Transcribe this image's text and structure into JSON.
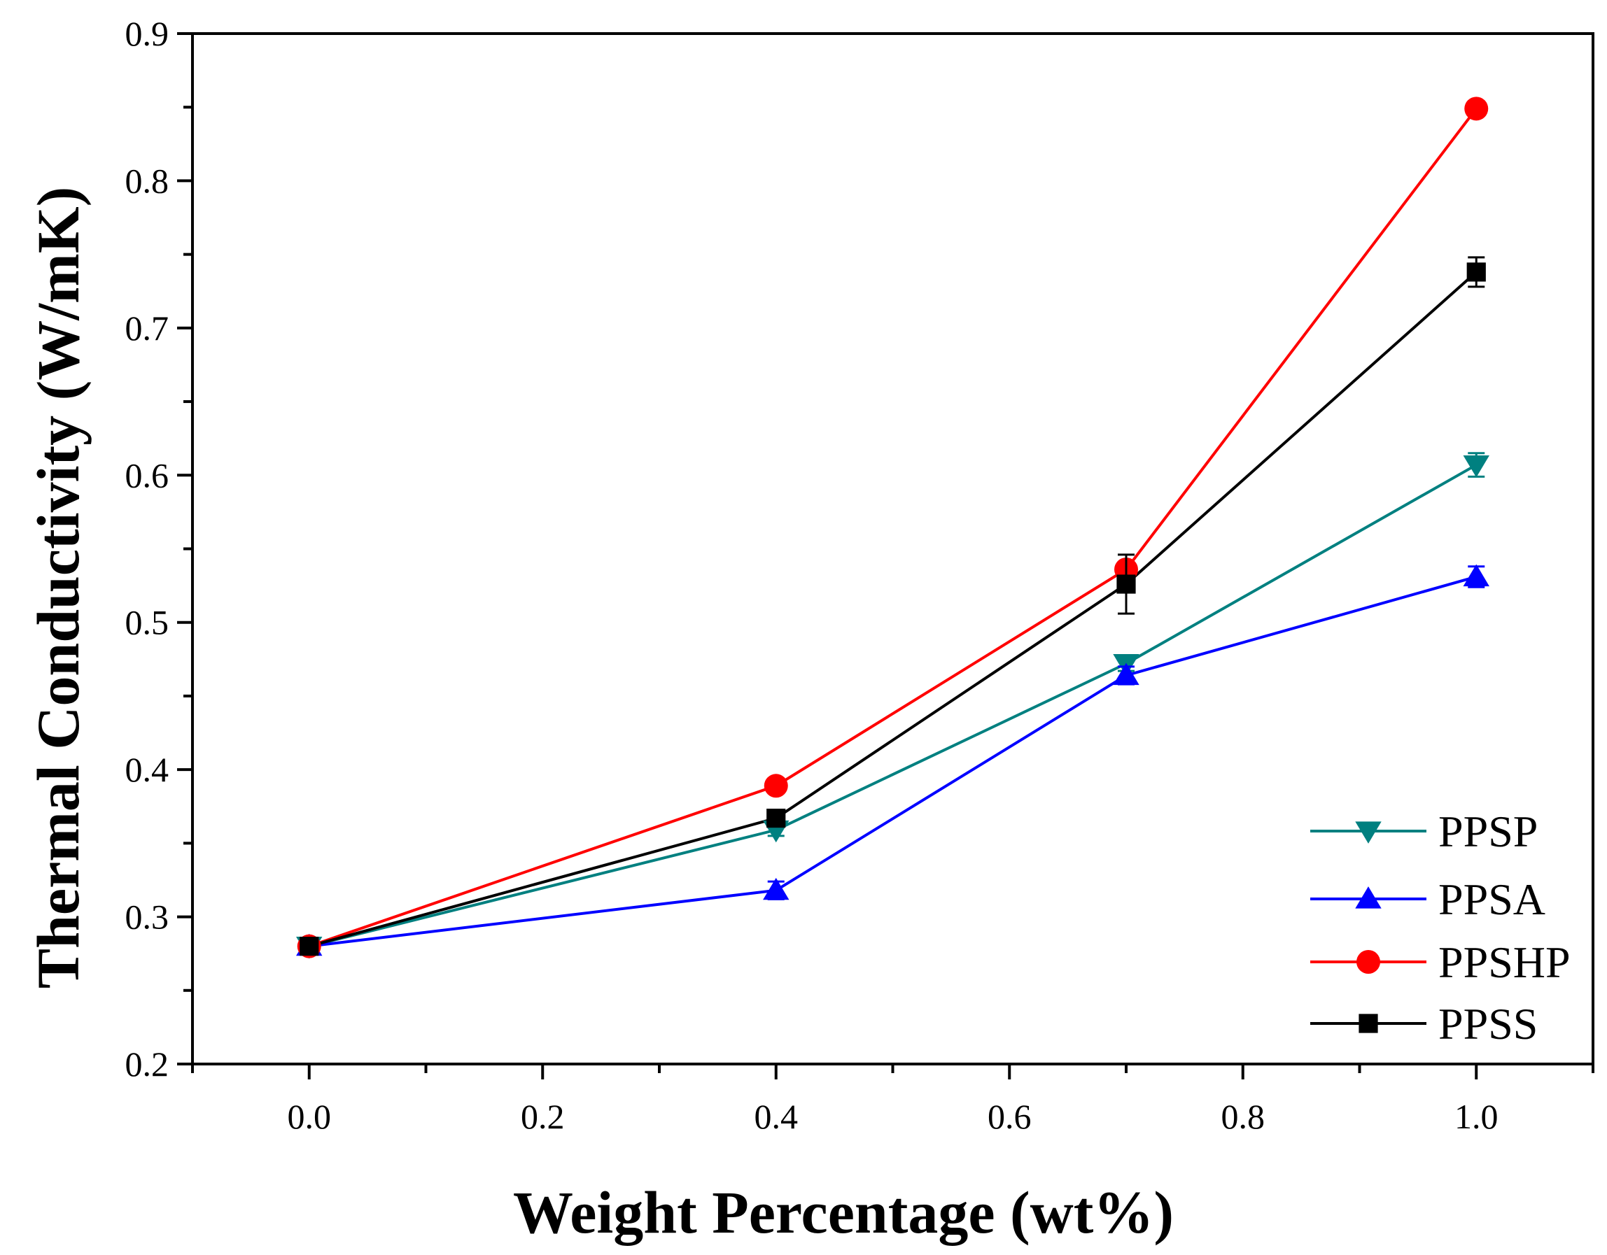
{
  "chart_data": {
    "type": "line",
    "title": "",
    "xlabel": "Weight Percentage (wt%)",
    "ylabel": "Thermal Conductivity (W/mK)",
    "xlim": [
      -0.1,
      1.1
    ],
    "ylim": [
      0.2,
      0.9
    ],
    "x_ticks": [
      "0.0",
      "0.2",
      "0.4",
      "0.6",
      "0.8",
      "1.0"
    ],
    "y_ticks": [
      "0.2",
      "0.3",
      "0.4",
      "0.5",
      "0.6",
      "0.7",
      "0.8",
      "0.9"
    ],
    "grid": false,
    "legend_position": "bottom-right",
    "x": [
      0.0,
      0.4,
      0.7,
      1.0
    ],
    "series": [
      {
        "name": "PPSP",
        "marker": "triangle-down",
        "color": "#008080",
        "values": [
          0.28,
          0.359,
          0.472,
          0.607
        ],
        "errors": [
          0.003,
          0.004,
          0.005,
          0.008
        ]
      },
      {
        "name": "PPSA",
        "marker": "triangle-up",
        "color": "#0000ff",
        "values": [
          0.28,
          0.318,
          0.464,
          0.531
        ],
        "errors": [
          0.003,
          0.006,
          0.006,
          0.007
        ]
      },
      {
        "name": "PPSHP",
        "marker": "circle",
        "color": "#ff0000",
        "values": [
          0.28,
          0.389,
          0.536,
          0.849
        ],
        "errors": [
          0.003,
          0.004,
          0.005,
          0.004
        ]
      },
      {
        "name": "PPSS",
        "marker": "square",
        "color": "#000000",
        "values": [
          0.28,
          0.367,
          0.526,
          0.738
        ],
        "errors": [
          0.003,
          0.004,
          0.02,
          0.01
        ]
      }
    ]
  }
}
